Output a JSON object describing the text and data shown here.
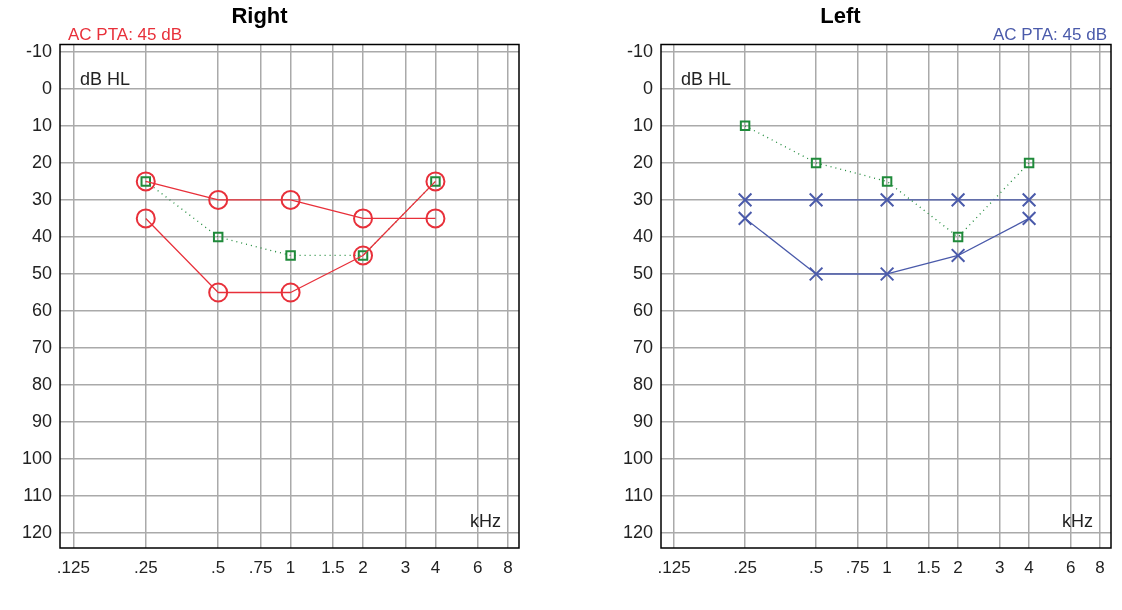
{
  "chart_data": [
    {
      "type": "line",
      "title": "Right",
      "xlabel": "kHz",
      "ylabel": "dB HL",
      "annotations": [
        "AC PTA: 45 dB"
      ],
      "log": "x",
      "grid": true,
      "legend": false,
      "xlim": [
        0.11,
        8.9
      ],
      "xticks": [
        {
          "value": 0.125,
          "label": ".125"
        },
        {
          "value": 0.25,
          "label": ".25"
        },
        {
          "value": 0.5,
          "label": ".5"
        },
        {
          "value": 0.75,
          "label": ".75"
        },
        1,
        1.5,
        2,
        3,
        4,
        6,
        8
      ],
      "ylim": [
        124,
        -12
      ],
      "yticks": [
        -10,
        0,
        10,
        20,
        30,
        40,
        50,
        60,
        70,
        80,
        90,
        100,
        110,
        120
      ],
      "x": [
        0.25,
        0.5,
        1,
        2,
        4
      ],
      "series": [
        {
          "color": "#e8303a",
          "marker": "circle",
          "line_style": "solid",
          "values": [
            25,
            30,
            30,
            35,
            35
          ]
        },
        {
          "color": "#e8303a",
          "marker": "circle",
          "line_style": "solid",
          "values": [
            35,
            55,
            55,
            45,
            25
          ]
        },
        {
          "color": "#1f8a3a",
          "marker": "square",
          "line_style": "dotted",
          "values": [
            25,
            40,
            45,
            45,
            25
          ]
        }
      ]
    },
    {
      "type": "line",
      "title": "Left",
      "xlabel": "kHz",
      "ylabel": "dB HL",
      "annotations": [
        "AC PTA: 45 dB"
      ],
      "log": "x",
      "grid": true,
      "legend": false,
      "xlim": [
        0.11,
        8.9
      ],
      "xticks": [
        {
          "value": 0.125,
          "label": ".125"
        },
        {
          "value": 0.25,
          "label": ".25"
        },
        {
          "value": 0.5,
          "label": ".5"
        },
        {
          "value": 0.75,
          "label": ".75"
        },
        1,
        1.5,
        2,
        3,
        4,
        6,
        8
      ],
      "ylim": [
        124,
        -12
      ],
      "yticks": [
        -10,
        0,
        10,
        20,
        30,
        40,
        50,
        60,
        70,
        80,
        90,
        100,
        110,
        120
      ],
      "x": [
        0.25,
        0.5,
        1,
        2,
        4
      ],
      "series": [
        {
          "color": "#4a5aaa",
          "marker": "cross",
          "line_style": "solid",
          "values": [
            30,
            30,
            30,
            30,
            30
          ]
        },
        {
          "color": "#4a5aaa",
          "marker": "cross",
          "line_style": "solid",
          "values": [
            35,
            50,
            50,
            45,
            35
          ]
        },
        {
          "color": "#1f8a3a",
          "marker": "square",
          "line_style": "dotted",
          "values": [
            10,
            20,
            25,
            40,
            20
          ]
        }
      ]
    }
  ]
}
